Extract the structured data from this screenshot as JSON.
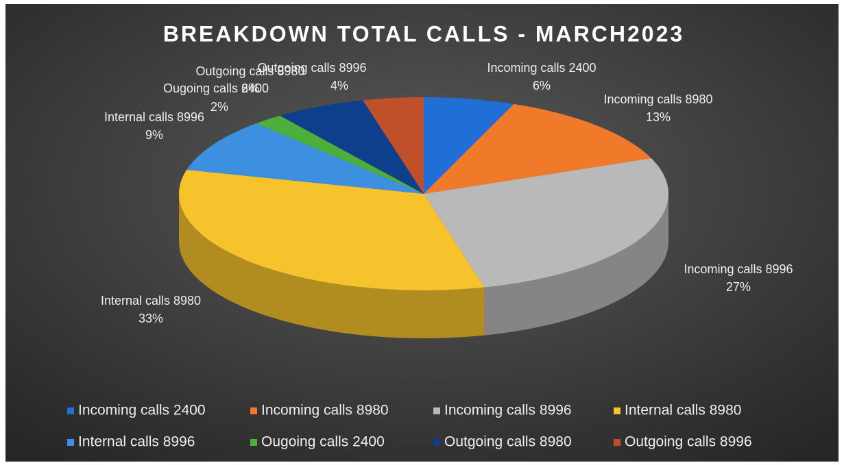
{
  "chart_data": {
    "type": "pie3d",
    "title": "BREAKDOWN TOTAL CALLS - MARCH2023",
    "categories": [
      "Incoming calls 2400",
      "Incoming calls 8980",
      "Incoming calls 8996",
      "Internal calls 8980",
      "Internal calls 8996",
      "Ougoing calls 2400",
      "Outgoing calls 8980",
      "Outgoing calls 8996"
    ],
    "values": [
      6,
      13,
      27,
      33,
      9,
      2,
      6,
      4
    ],
    "value_labels": [
      "6%",
      "13%",
      "27%",
      "33%",
      "9%",
      "2%",
      "6%",
      "4%"
    ],
    "colors": [
      "#1f6fd6",
      "#f07a2a",
      "#b9b9b9",
      "#f6c32c",
      "#3d8fe0",
      "#4caf3c",
      "#0e3f8c",
      "#c0502a"
    ],
    "legend": "bottom"
  }
}
